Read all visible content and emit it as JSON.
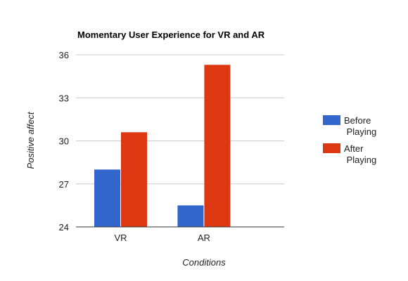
{
  "chart_data": {
    "type": "bar",
    "title": "Momentary User Experience for VR and AR",
    "xlabel": "Conditions",
    "ylabel": "Positive affect",
    "categories": [
      "VR",
      "AR"
    ],
    "series": [
      {
        "name": "Before Playing",
        "values": [
          28.0,
          25.5
        ],
        "color": "#3366cc"
      },
      {
        "name": "After Playing",
        "values": [
          30.6,
          35.3
        ],
        "color": "#dc3912"
      }
    ],
    "ylim": [
      24,
      36
    ],
    "yticks": [
      24,
      27,
      30,
      33,
      36
    ],
    "grid": true,
    "legend_position": "right"
  }
}
